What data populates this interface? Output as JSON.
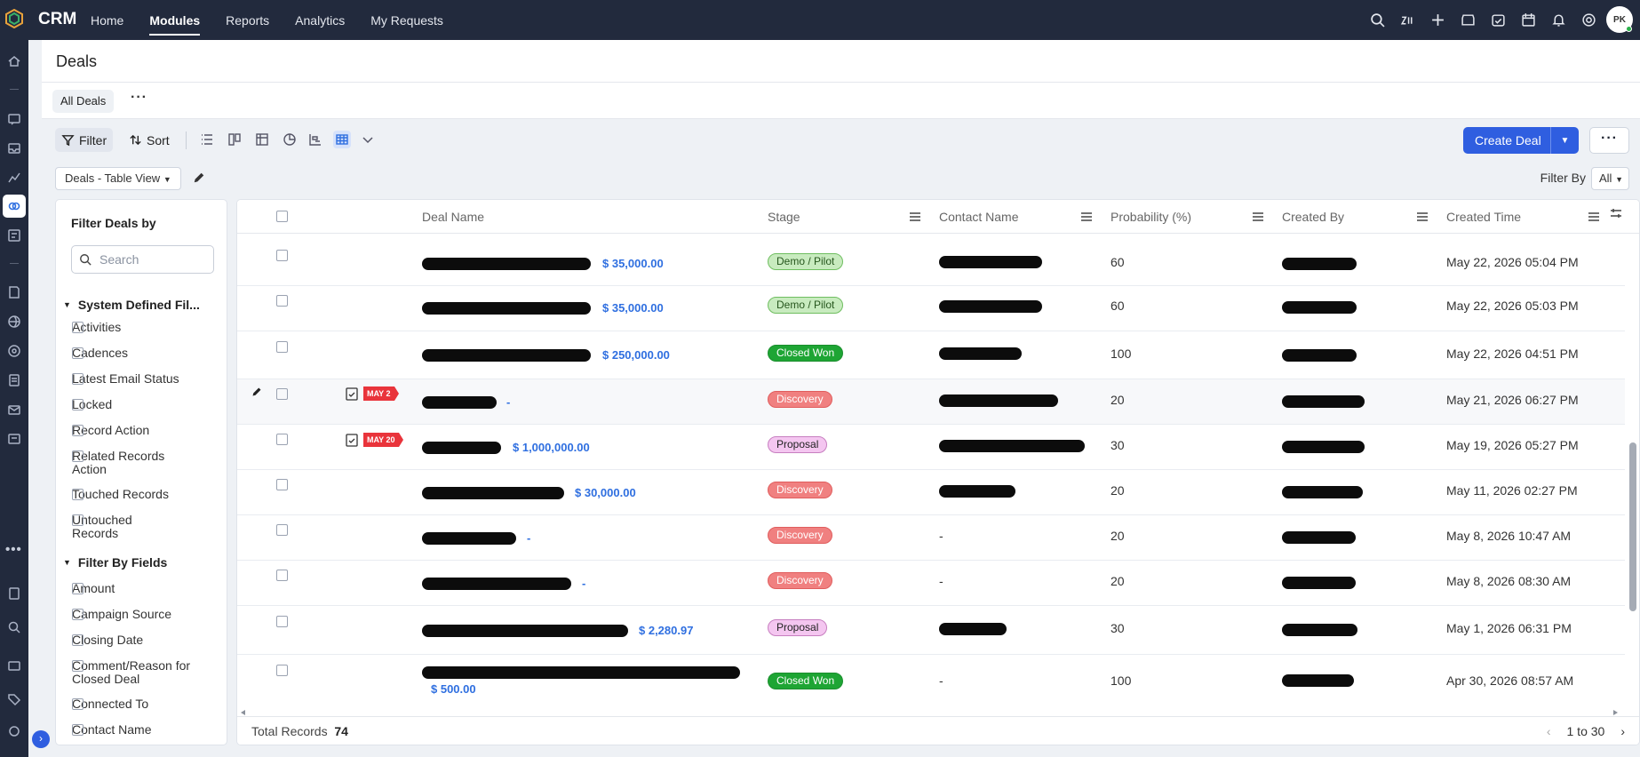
{
  "app": {
    "brand": "CRM",
    "avatar_initials": "PK",
    "accent": "#2f5ee0"
  },
  "nav": [
    {
      "label": "Home",
      "active": false
    },
    {
      "label": "Modules",
      "active": true
    },
    {
      "label": "Reports",
      "active": false
    },
    {
      "label": "Analytics",
      "active": false
    },
    {
      "label": "My Requests",
      "active": false
    }
  ],
  "page": {
    "title": "Deals"
  },
  "views": {
    "active_tab": "All Deals"
  },
  "toolbar": {
    "filter": "Filter",
    "sort": "Sort",
    "create": "Create Deal"
  },
  "viewselect": {
    "value": "Deals - Table View",
    "filter_by_label": "Filter By",
    "filter_by_value": "All"
  },
  "sidebar": {
    "title": "Filter Deals by",
    "search_placeholder": "Search",
    "section1": "System Defined Fil...",
    "system_filters": [
      "Activities",
      "Cadences",
      "Latest Email Status",
      "Locked",
      "Record Action",
      "Related Records Action",
      "Touched Records",
      "Untouched Records"
    ],
    "section2": "Filter By Fields",
    "field_filters": [
      "Amount",
      "Campaign Source",
      "Closing Date",
      "Comment/Reason for Closed Deal",
      "Connected To",
      "Contact Name"
    ]
  },
  "table": {
    "columns": {
      "deal_name": "Deal Name",
      "stage": "Stage",
      "contact_name": "Contact Name",
      "probability": "Probability (%)",
      "created_by": "Created By",
      "created_time": "Created Time"
    },
    "rows": [
      {
        "amount": "$ 35,000.00",
        "stage": "Demo / Pilot",
        "stage_kind": "demo",
        "contact": "",
        "probability": "60",
        "created_time": "May 22, 2026 05:04 PM",
        "tag": ""
      },
      {
        "amount": "$ 35,000.00",
        "stage": "Demo / Pilot",
        "stage_kind": "demo",
        "contact": "",
        "probability": "60",
        "created_time": "May 22, 2026 05:03 PM",
        "tag": ""
      },
      {
        "amount": "$ 250,000.00",
        "stage": "Closed Won",
        "stage_kind": "won",
        "contact": "",
        "probability": "100",
        "created_time": "May 22, 2026 04:51 PM",
        "tag": ""
      },
      {
        "amount": "-",
        "stage": "Discovery",
        "stage_kind": "disc",
        "contact": "",
        "probability": "20",
        "created_time": "May 21, 2026 06:27 PM",
        "tag": "MAY 2"
      },
      {
        "amount": "$ 1,000,000.00",
        "stage": "Proposal",
        "stage_kind": "prop",
        "contact": "",
        "probability": "30",
        "created_time": "May 19, 2026 05:27 PM",
        "tag": "MAY 20"
      },
      {
        "amount": "$ 30,000.00",
        "stage": "Discovery",
        "stage_kind": "disc",
        "contact": "",
        "probability": "20",
        "created_time": "May 11, 2026 02:27 PM",
        "tag": ""
      },
      {
        "amount": "-",
        "stage": "Discovery",
        "stage_kind": "disc",
        "contact": "-",
        "probability": "20",
        "created_time": "May 8, 2026 10:47 AM",
        "tag": ""
      },
      {
        "amount": "-",
        "stage": "Discovery",
        "stage_kind": "disc",
        "contact": "-",
        "probability": "20",
        "created_time": "May 8, 2026 08:30 AM",
        "tag": ""
      },
      {
        "amount": "$ 2,280.97",
        "stage": "Proposal",
        "stage_kind": "prop",
        "contact": "",
        "probability": "30",
        "created_time": "May 1, 2026 06:31 PM",
        "tag": ""
      },
      {
        "amount": "$ 500.00",
        "stage": "Closed Won",
        "stage_kind": "won",
        "contact": "-",
        "probability": "100",
        "created_time": "Apr 30, 2026 08:57 AM",
        "tag": ""
      }
    ]
  },
  "footer": {
    "total_label": "Total Records",
    "total": "74",
    "range": "1 to 30"
  }
}
